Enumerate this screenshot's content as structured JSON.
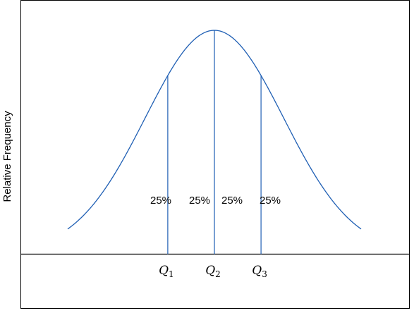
{
  "chart_data": {
    "type": "area",
    "title": "",
    "xlabel": "",
    "ylabel": "Relative Frequency",
    "distribution": "normal",
    "mean": 0,
    "sd": 1,
    "xlim": [
      -3.2,
      3.2
    ],
    "ylim": [
      0,
      0.4
    ],
    "grid": false,
    "quartiles": [
      {
        "name": "Q1",
        "base": "Q",
        "sub": "1",
        "x": -0.6745
      },
      {
        "name": "Q2",
        "base": "Q",
        "sub": "2",
        "x": 0
      },
      {
        "name": "Q3",
        "base": "Q",
        "sub": "3",
        "x": 0.6745
      }
    ],
    "regions": [
      {
        "label": "25%",
        "share": 0.25
      },
      {
        "label": "25%",
        "share": 0.25
      },
      {
        "label": "25%",
        "share": 0.25
      },
      {
        "label": "25%",
        "share": 0.25
      }
    ],
    "colors": {
      "curve": "#1f5fb4",
      "axes": "#000000",
      "text": "#000000"
    }
  }
}
